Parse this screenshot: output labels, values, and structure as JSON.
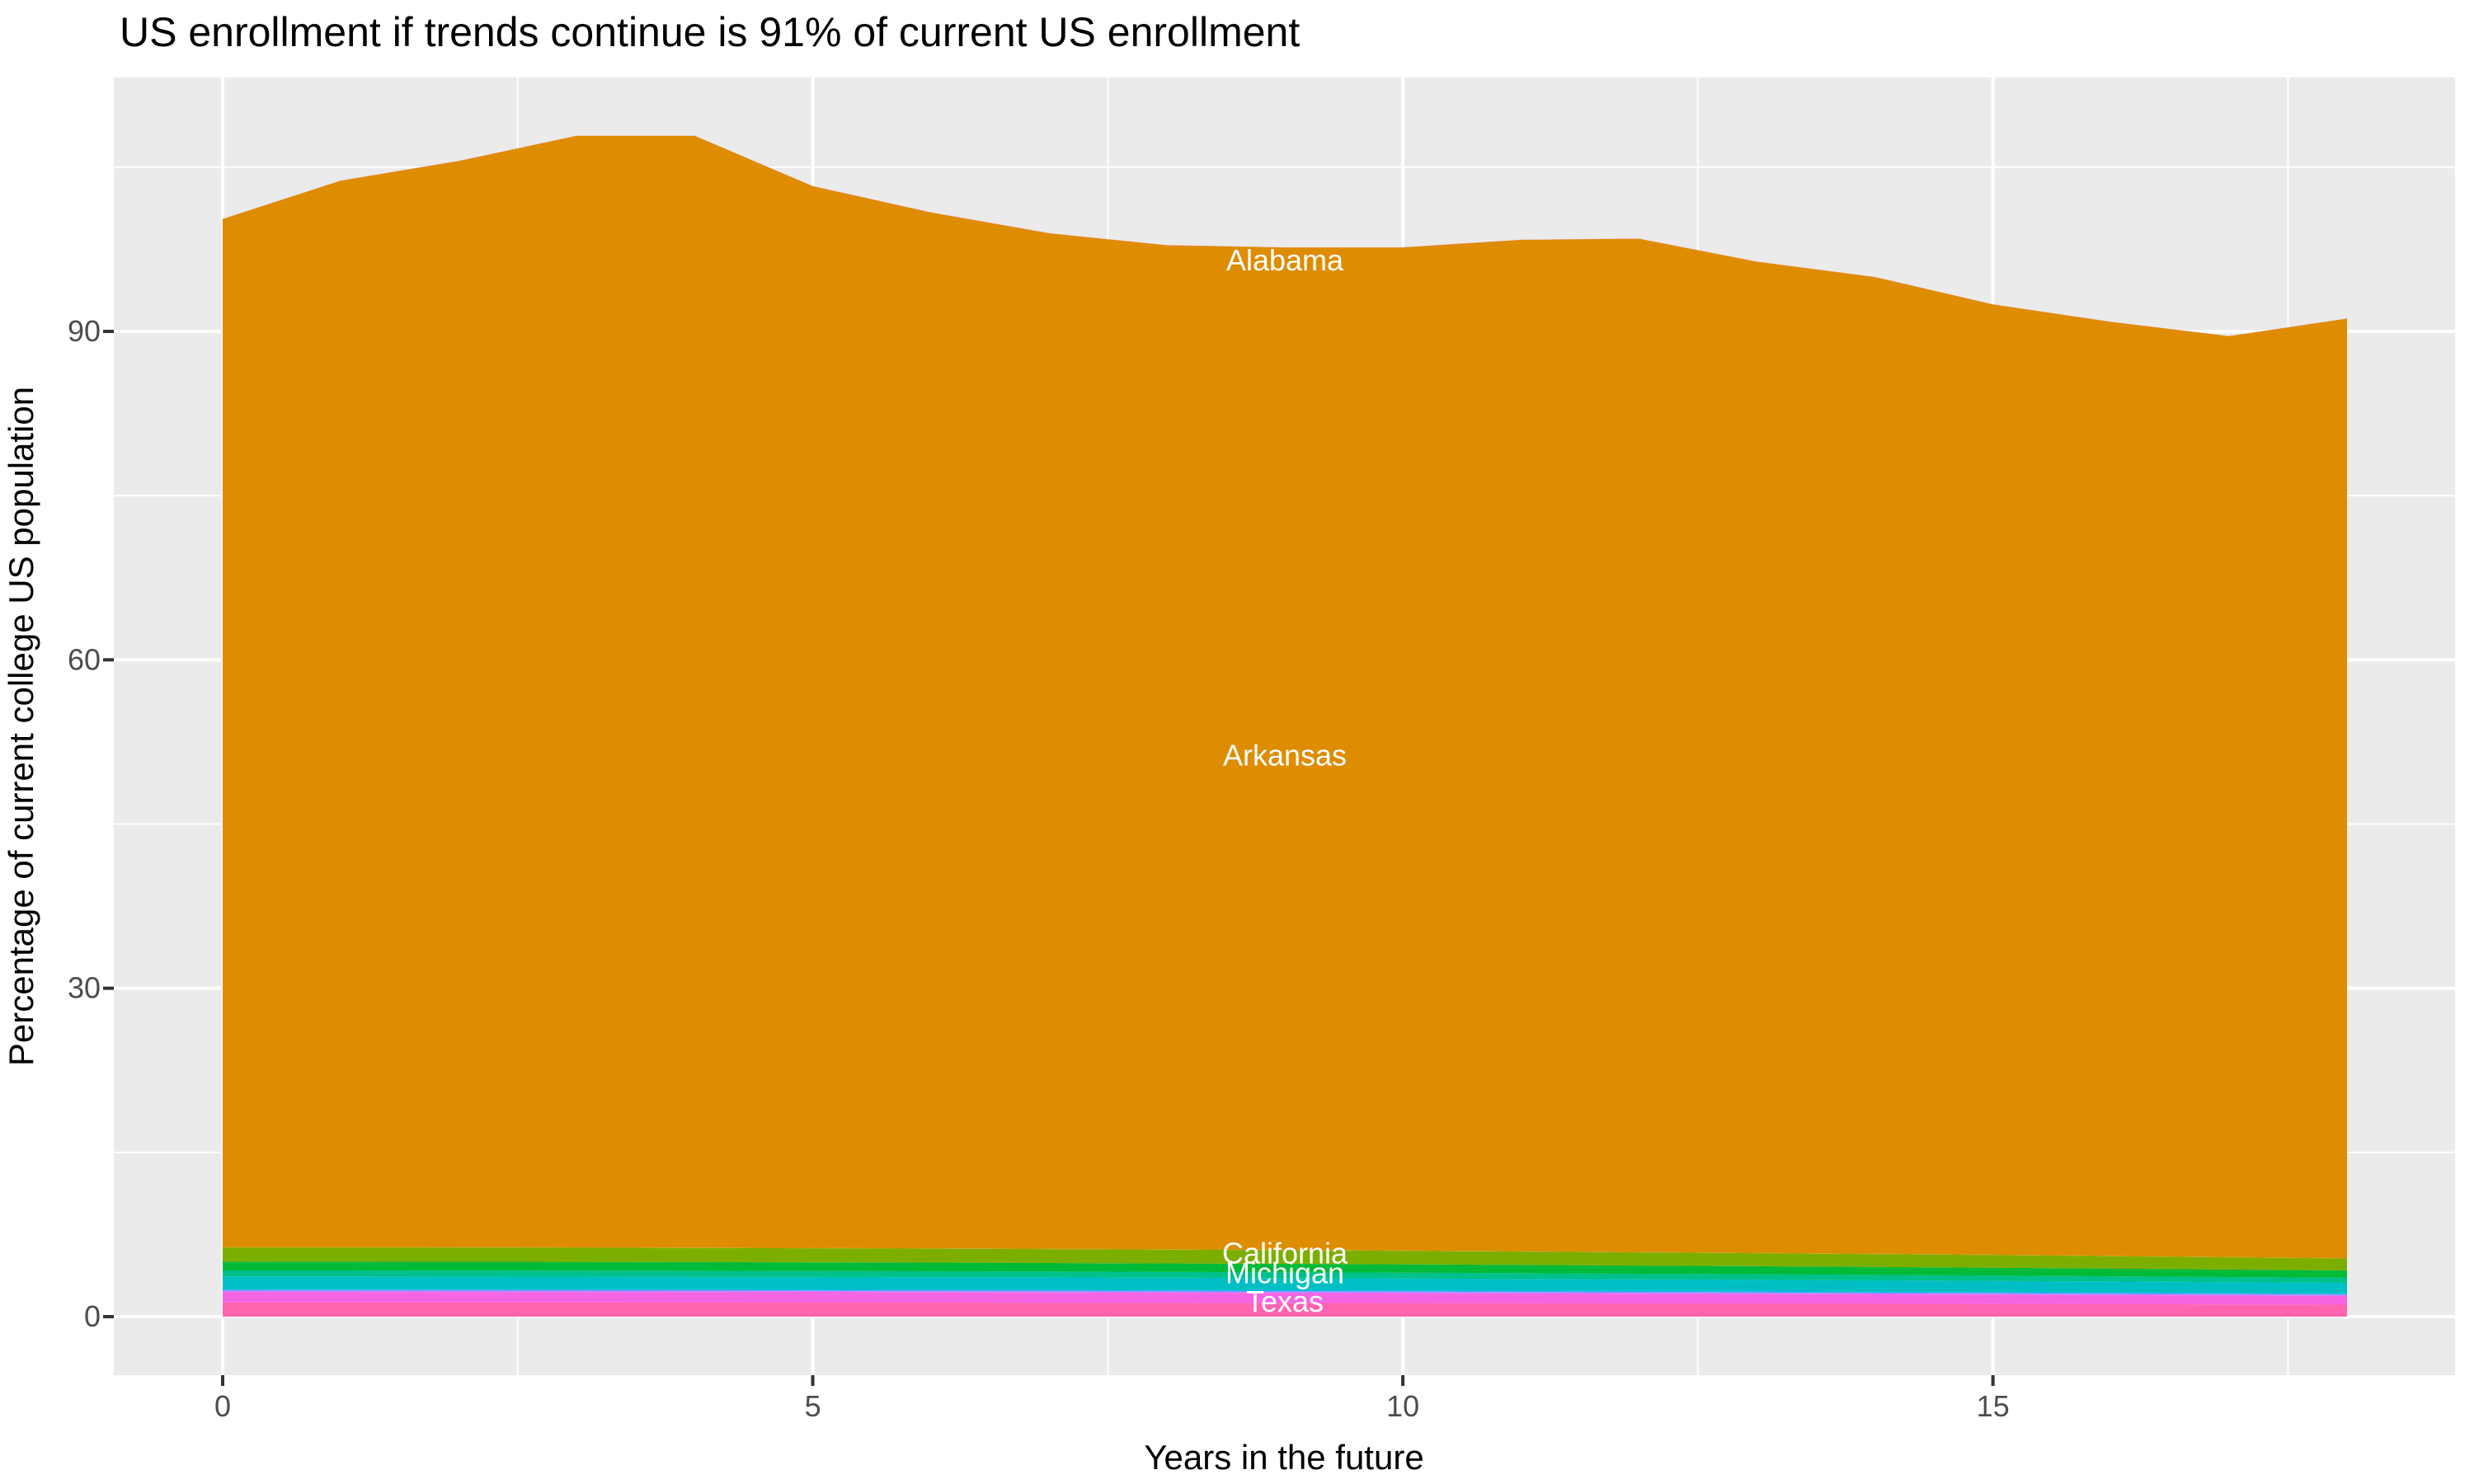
{
  "colors": {
    "panel_background": "#EBEBEB",
    "gridline": "#FFFFFF",
    "tick_mark": "#333333",
    "tick_label": "#4D4D4D",
    "title_color": "#000000",
    "axis_title_color": "#000000",
    "area_label_color": "#FFFFFF"
  },
  "chart_data": {
    "type": "area",
    "stacked": true,
    "title": "US enrollment if trends continue is 91% of current US enrollment",
    "xlabel": "Years in the future",
    "ylabel": "Percentage of current college US population",
    "grid": "on",
    "legend": "none",
    "x_domain": [
      0,
      18
    ],
    "x_domain_expanded": [
      -0.9,
      18.9
    ],
    "y_domain_expanded": [
      -5.4,
      113.2
    ],
    "x_ticks_major": [
      0,
      5,
      10,
      15
    ],
    "x_tick_labels": [
      "0",
      "5",
      "10",
      "15"
    ],
    "x_ticks_minor": [
      2.5,
      7.5,
      12.5,
      17.5
    ],
    "y_ticks_major": [
      0,
      30,
      60,
      90
    ],
    "y_tick_labels": [
      "0",
      "30",
      "60",
      "90"
    ],
    "y_ticks_minor": [
      15,
      45,
      75,
      105
    ],
    "years": [
      0,
      1,
      2,
      3,
      4,
      5,
      6,
      7,
      8,
      9,
      10,
      11,
      12,
      13,
      14,
      15,
      16,
      17,
      18
    ],
    "total_stack_top": [
      100.3,
      103.8,
      105.6,
      107.9,
      107.9,
      103.3,
      100.9,
      99.0,
      97.9,
      97.7,
      97.7,
      98.4,
      98.5,
      96.4,
      95.0,
      92.5,
      90.9,
      89.6,
      91.2
    ],
    "strip_shrink_at_end": 0.84,
    "bands_bottom_to_top": [
      {
        "label": "Texas",
        "color": "#FF64B0",
        "thickness": 1.3
      },
      {
        "label": null,
        "color": "#F564E3",
        "thickness": 0.95
      },
      {
        "label": null,
        "color": "#C77CFF",
        "thickness": 0.13
      },
      {
        "label": null,
        "color": "#619CFF",
        "thickness": 0.05
      },
      {
        "label": null,
        "color": "#00B4F0",
        "thickness": 0.09
      },
      {
        "label": "Michigan",
        "color": "#00BFC4",
        "thickness": 1.15
      },
      {
        "label": null,
        "color": "#00C08B",
        "thickness": 0.55
      },
      {
        "label": null,
        "color": "#00BA38",
        "thickness": 0.8
      },
      {
        "label": "California",
        "color": "#7CAE00",
        "thickness": 1.3
      },
      {
        "label": null,
        "color": "#B79F00",
        "thickness": 0.04
      },
      {
        "label": "Arkansas",
        "color": "#DE8C00",
        "thickness": "remainder"
      },
      {
        "label": "Alabama",
        "color": "#F8766D",
        "thickness": 0.02
      }
    ],
    "area_labels": [
      {
        "text": "Alabama",
        "year": 9.0,
        "value": 96.5
      },
      {
        "text": "Arkansas",
        "year": 9.0,
        "value": 51.3
      },
      {
        "text": "California",
        "year": 9.0,
        "value": 5.8
      },
      {
        "text": "Michigan",
        "year": 9.0,
        "value": 4.0
      },
      {
        "text": "Texas",
        "year": 9.0,
        "value": 1.4
      }
    ]
  }
}
